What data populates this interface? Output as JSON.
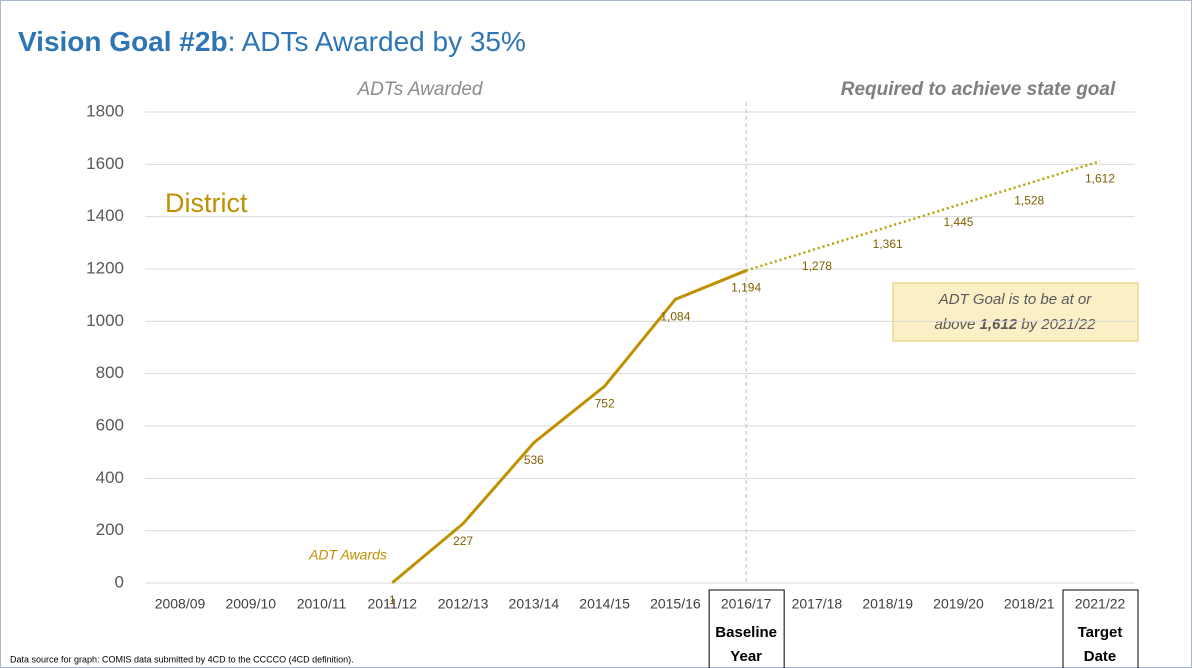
{
  "chart_data": {
    "type": "line",
    "title": {
      "bold": "Vision Goal #2b",
      "rest": ": ADTs Awarded by 35%"
    },
    "section_labels": {
      "left": "ADTs Awarded",
      "right": "Required to achieve state goal"
    },
    "subtitle": "District",
    "categories": [
      "2008/09",
      "2009/10",
      "2010/11",
      "2011/12",
      "2012/13",
      "2013/14",
      "2014/15",
      "2015/16",
      "2016/17",
      "2017/18",
      "2018/19",
      "2019/20",
      "2018/21",
      "2021/22"
    ],
    "series": [
      {
        "name": "ADT Awards",
        "color": "#bf9000",
        "line_style": "solid",
        "values": [
          null,
          null,
          null,
          1,
          227,
          536,
          752,
          1084,
          1194,
          null,
          null,
          null,
          null,
          null
        ],
        "value_labels": [
          null,
          null,
          null,
          "1",
          "227",
          "536",
          "752",
          "1,084",
          "1,194",
          null,
          null,
          null,
          null,
          null
        ]
      },
      {
        "color": "#b5a100",
        "line_style": "dotted",
        "values": [
          null,
          null,
          null,
          null,
          null,
          null,
          null,
          null,
          1194,
          1278,
          1361,
          1445,
          1528,
          1612
        ],
        "value_labels": [
          null,
          null,
          null,
          null,
          null,
          null,
          null,
          null,
          null,
          "1,278",
          "1,361",
          "1,445",
          "1,528",
          "1,612"
        ]
      }
    ],
    "ylim": [
      0,
      1800
    ],
    "yticks": [
      0,
      200,
      400,
      600,
      800,
      1000,
      1200,
      1400,
      1600,
      1800
    ],
    "grid": true,
    "annotation": {
      "line1": "ADT Goal is to be at or",
      "line2_pre": "above ",
      "line2_bold": "1,612",
      "line2_post": " by 2021/22"
    },
    "category_notes": [
      {
        "category": "2016/17",
        "lines": [
          "Baseline",
          "Year"
        ]
      },
      {
        "category": "2021/22",
        "lines": [
          "Target",
          "Date"
        ]
      }
    ],
    "source": "Data source for graph: COMIS data submitted by 4CD to the CCCCO  (4CD definition)."
  }
}
